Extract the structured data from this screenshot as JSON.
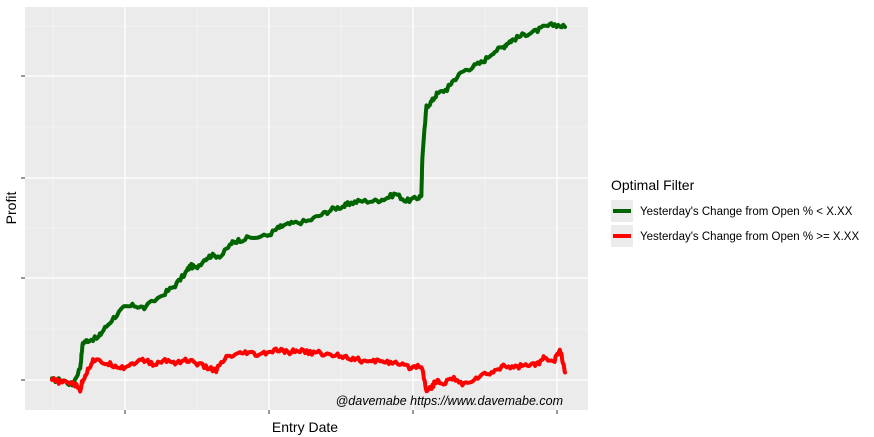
{
  "chart_data": {
    "type": "line",
    "title": "",
    "xlabel": "Entry Date",
    "ylabel": "Profit",
    "x_tick_labels_visible": false,
    "y_tick_labels_visible": false,
    "grid": true,
    "legend_placement": "right",
    "legend_title": "Optimal Filter",
    "annotation": "@davemabe https://www.davemabe.com",
    "series": [
      {
        "name": "Yesterday's Change from Open % < X.XX",
        "color": "#006400",
        "x": [
          0,
          2,
          4,
          5.5,
          6,
          7,
          9,
          10,
          12,
          14,
          16,
          18,
          22,
          24,
          26,
          27,
          28,
          30,
          31,
          33,
          35,
          36,
          38,
          42,
          44,
          45,
          47,
          50,
          53,
          55,
          57,
          58,
          60,
          63,
          65,
          67,
          69,
          71,
          72,
          72.2,
          73,
          74,
          75,
          77,
          78,
          80,
          82,
          84,
          86,
          88,
          89,
          90,
          92,
          94,
          96,
          98,
          100
        ],
        "y": [
          0.0,
          0.0,
          -0.02,
          0.05,
          0.15,
          0.16,
          0.17,
          0.2,
          0.25,
          0.29,
          0.3,
          0.29,
          0.35,
          0.38,
          0.43,
          0.46,
          0.45,
          0.49,
          0.5,
          0.5,
          0.55,
          0.56,
          0.57,
          0.58,
          0.61,
          0.62,
          0.63,
          0.64,
          0.67,
          0.69,
          0.7,
          0.71,
          0.72,
          0.72,
          0.73,
          0.75,
          0.72,
          0.73,
          0.74,
          0.9,
          1.1,
          1.12,
          1.15,
          1.17,
          1.2,
          1.24,
          1.26,
          1.28,
          1.32,
          1.34,
          1.36,
          1.37,
          1.39,
          1.4,
          1.42,
          1.43,
          1.42
        ]
      },
      {
        "name": "Yesterday's Change from Open % >= X.XX",
        "color": "#ff0000",
        "x": [
          0,
          2,
          4,
          5.5,
          6,
          7,
          8,
          10,
          12,
          14,
          16,
          18,
          20,
          22,
          24,
          26,
          28,
          30,
          32,
          34,
          36,
          38,
          40,
          42,
          44,
          46,
          48,
          50,
          52,
          54,
          56,
          58,
          60,
          62,
          64,
          66,
          68,
          70,
          72,
          73,
          74,
          75,
          76,
          78,
          80,
          82,
          84,
          86,
          88,
          90,
          92,
          94,
          95,
          96,
          98,
          99,
          99.5,
          100
        ],
        "y": [
          0.0,
          -0.01,
          -0.01,
          -0.04,
          0.0,
          0.04,
          0.08,
          0.07,
          0.06,
          0.05,
          0.07,
          0.08,
          0.06,
          0.08,
          0.07,
          0.08,
          0.07,
          0.05,
          0.04,
          0.09,
          0.1,
          0.11,
          0.1,
          0.11,
          0.12,
          0.11,
          0.12,
          0.11,
          0.11,
          0.1,
          0.1,
          0.09,
          0.08,
          0.07,
          0.08,
          0.07,
          0.06,
          0.05,
          0.06,
          -0.04,
          -0.03,
          0.0,
          -0.02,
          0.01,
          -0.02,
          0.0,
          0.02,
          0.03,
          0.06,
          0.05,
          0.06,
          0.06,
          0.07,
          0.09,
          0.08,
          0.12,
          0.08,
          0.03
        ]
      }
    ]
  }
}
